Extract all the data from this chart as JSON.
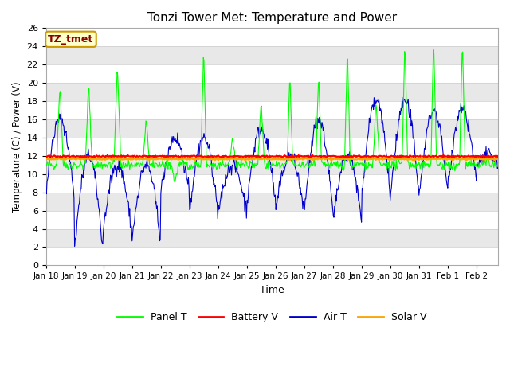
{
  "title": "Tonzi Tower Met: Temperature and Power",
  "xlabel": "Time",
  "ylabel": "Temperature (C) / Power (V)",
  "ylim": [
    0,
    26
  ],
  "figure_color": "#ffffff",
  "legend_label": "TZ_tmet",
  "legend_entries": [
    "Panel T",
    "Battery V",
    "Air T",
    "Solar V"
  ],
  "legend_colors": [
    "#00ff00",
    "#ff0000",
    "#0000cc",
    "#ffa500"
  ],
  "xtick_labels": [
    "Jan 18",
    "Jan 19",
    "Jan 20",
    "Jan 21",
    "Jan 22",
    "Jan 23",
    "Jan 24",
    "Jan 25",
    "Jan 26",
    "Jan 27",
    "Jan 28",
    "Jan 29",
    "Jan 30",
    "Jan 31",
    "Feb 1",
    "Feb 2"
  ],
  "yticks": [
    0,
    2,
    4,
    6,
    8,
    10,
    12,
    14,
    16,
    18,
    20,
    22,
    24,
    26
  ],
  "band_colors": [
    "#ffffff",
    "#e8e8e8"
  ],
  "grid_color": "#cccccc",
  "battery_v_val": 11.95,
  "solar_v_val": 11.65,
  "n_days": 15.75,
  "n_points_per_day": 48
}
